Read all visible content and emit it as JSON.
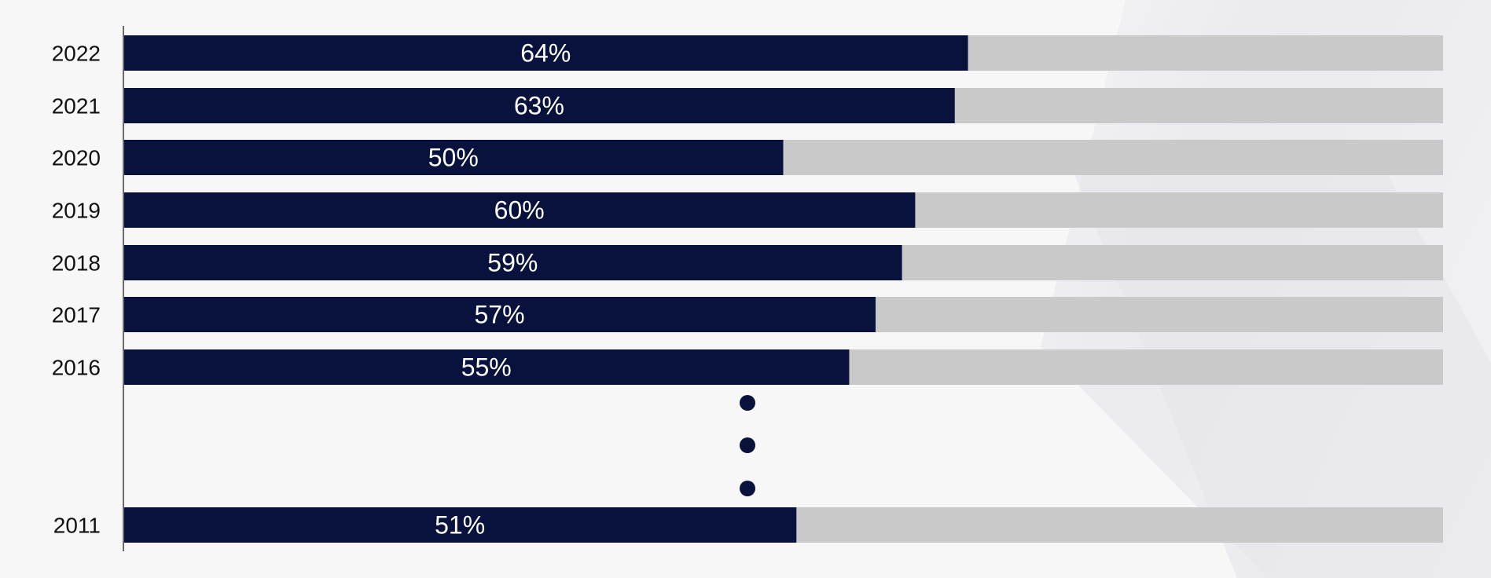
{
  "chart_data": {
    "type": "bar",
    "orientation": "horizontal",
    "stacked_remainder": true,
    "categories": [
      "2022",
      "2021",
      "2020",
      "2019",
      "2018",
      "2017",
      "2016",
      "2011"
    ],
    "values": [
      64,
      63,
      50,
      60,
      59,
      57,
      55,
      51
    ],
    "data_labels": [
      "64%",
      "63%",
      "50%",
      "60%",
      "59%",
      "57%",
      "55%",
      "51%"
    ],
    "xlim": [
      0,
      100
    ],
    "unit": "%",
    "grid": false,
    "legend": "none",
    "title": "",
    "xlabel": "",
    "ylabel": "",
    "gap_marker": "ellipsis between 2016 and 2011"
  },
  "colors": {
    "bar_fill": "#08123d",
    "bar_remainder": "#c9c9c9",
    "label_text": "#ffffff",
    "axis": "#6b6b6b",
    "tick_text": "#111111",
    "ellipsis_dots": "#08123d"
  }
}
